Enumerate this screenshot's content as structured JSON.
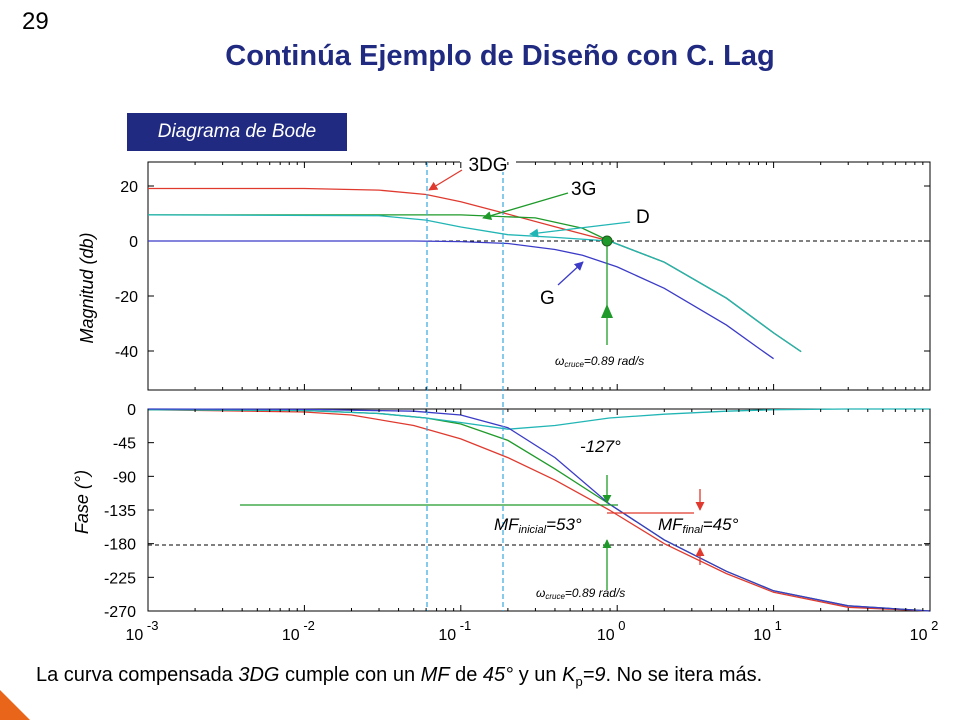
{
  "slide_number": "29",
  "title": "Continúa Ejemplo de Diseño con C. Lag",
  "badge": "Diagrama de Bode",
  "caption": {
    "p1": "La curva compensada ",
    "p2": "3DG",
    "p3": " cumple con un ",
    "p4": "MF",
    "p5": " de ",
    "p6": "45°",
    "p7": " y un ",
    "p8": "K",
    "p9": "p",
    "p10": "=9",
    "p11": ". No se itera más."
  },
  "colors": {
    "red": "#e03a2f",
    "green": "#1f9a2a",
    "cyan": "#22b5b5",
    "blue": "#3b3bc8",
    "olive": "#6b6b1e",
    "navy": "#1f2a80",
    "orange": "#e8651a"
  },
  "chart_data": [
    {
      "type": "line",
      "ylabel": "Magnitud (db)",
      "x_scale": "log",
      "xlim": [
        0.001,
        100
      ],
      "ylim": [
        -52,
        26
      ],
      "yticks": [
        "20",
        "0",
        "-20",
        "-40"
      ],
      "series": [
        {
          "name": "3DG",
          "x": [
            0.001,
            0.01,
            0.03,
            0.06,
            0.1,
            0.2,
            0.4,
            0.89,
            2,
            5,
            10,
            15
          ],
          "y": [
            19.1,
            19.1,
            18.5,
            16.9,
            14.3,
            9.8,
            5.2,
            0,
            -7.7,
            -20.8,
            -33.4,
            -40.2
          ]
        },
        {
          "name": "3G",
          "x": [
            0.001,
            0.1,
            0.3,
            0.6,
            0.89,
            2,
            5,
            10,
            15
          ],
          "y": [
            9.5,
            9.5,
            8.4,
            4.6,
            0,
            -7.7,
            -20.8,
            -33.4,
            -40.2
          ]
        },
        {
          "name": "D",
          "x": [
            0.001,
            0.03,
            0.06,
            0.1,
            0.2,
            0.4,
            0.89,
            2,
            5,
            10,
            15
          ],
          "y": [
            9.5,
            9.2,
            7.6,
            5.1,
            2.3,
            1.3,
            0,
            -7.7,
            -20.8,
            -33.4,
            -40.2
          ]
        },
        {
          "name": "G",
          "x": [
            0.001,
            0.05,
            0.1,
            0.2,
            0.4,
            0.6,
            1,
            2,
            5,
            8,
            10
          ],
          "y": [
            0,
            0,
            -0.2,
            -0.9,
            -3.1,
            -5.2,
            -9.4,
            -17.2,
            -30.6,
            -38.9,
            -42.8
          ]
        }
      ],
      "annotations": [
        {
          "text": "3DG"
        },
        {
          "text": "3G"
        },
        {
          "text": "D"
        },
        {
          "text": "G"
        },
        {
          "text_sym": "ω",
          "text_sub": "cruce",
          "text_val": "=0.89 rad/s"
        }
      ],
      "crossover": {
        "x": 0.89,
        "y": 0
      }
    },
    {
      "type": "line",
      "ylabel": "Fase (°)",
      "x_scale": "log",
      "xlim": [
        0.001,
        100
      ],
      "ylim": [
        -270,
        0
      ],
      "yticks": [
        "0",
        "-45",
        "-90",
        "-135",
        "-180",
        "-225",
        "-270"
      ],
      "xticks": [
        {
          "base": "10",
          "exp": "-3"
        },
        {
          "base": "10",
          "exp": "-2"
        },
        {
          "base": "10",
          "exp": "-1"
        },
        {
          "base": "10",
          "exp": "0"
        },
        {
          "base": "10",
          "exp": "1"
        },
        {
          "base": "10",
          "exp": "2"
        }
      ],
      "series": [
        {
          "name": "3DG",
          "x": [
            0.001,
            0.01,
            0.02,
            0.05,
            0.1,
            0.2,
            0.4,
            0.89,
            2,
            5,
            10,
            30,
            100
          ],
          "y": [
            -1,
            -4,
            -8,
            -22,
            -40,
            -65,
            -95,
            -135,
            -180,
            -220,
            -245,
            -265,
            -270
          ]
        },
        {
          "name": "3G",
          "x": [
            0.001,
            0.01,
            0.03,
            0.06,
            0.1,
            0.2,
            0.4,
            0.89,
            2,
            5,
            10,
            30,
            100
          ],
          "y": [
            -1,
            -2,
            -6,
            -12,
            -20,
            -42,
            -80,
            -127,
            -175,
            -217,
            -243,
            -263,
            -270
          ]
        },
        {
          "name": "D",
          "x": [
            0.001,
            0.01,
            0.03,
            0.06,
            0.1,
            0.2,
            0.4,
            0.89,
            2,
            5,
            10,
            30,
            100
          ],
          "y": [
            -1,
            -2,
            -6,
            -12,
            -18,
            -27,
            -22,
            -12,
            -7,
            -3,
            -1,
            0,
            0
          ]
        },
        {
          "name": "G",
          "x": [
            0.001,
            0.01,
            0.05,
            0.1,
            0.2,
            0.4,
            0.89,
            2,
            5,
            10,
            30,
            100
          ],
          "y": [
            0,
            -0.6,
            -3,
            -8,
            -25,
            -65,
            -127,
            -175,
            -217,
            -243,
            -263,
            -270
          ]
        }
      ],
      "annotations": [
        {
          "text": "-127°"
        },
        {
          "text_main": "MF",
          "text_sub": "inicial",
          "text_val": "=53°"
        },
        {
          "text_main": "MF",
          "text_sub": "final",
          "text_val": "=45°"
        },
        {
          "text_sym": "ω",
          "text_sub": "cruce",
          "text_val": "=0.89 rad/s"
        }
      ],
      "reference_lines": {
        "phase_deg": -180,
        "margin_initial_deg": -127,
        "margin_final_deg": -135,
        "vertical_x": [
          0.066,
          0.2
        ]
      }
    }
  ]
}
